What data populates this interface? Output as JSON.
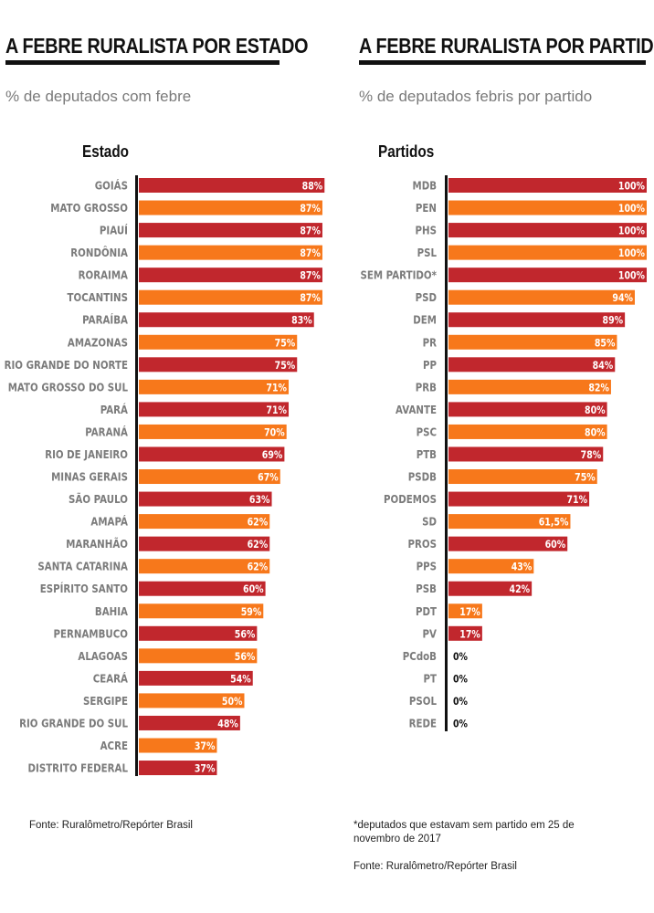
{
  "colors": {
    "red": "#c1272d",
    "orange": "#f7781b",
    "axis": "#111111",
    "label": "#7b7b7b"
  },
  "chart_data": [
    {
      "type": "bar",
      "orientation": "horizontal",
      "title": "A FEBRE RURALISTA POR ESTADO",
      "subtitle": "% de deputados com febre",
      "category_header": "Estado",
      "xlim": [
        0,
        100
      ],
      "value_suffix": "%",
      "categories": [
        "GOIÁS",
        "MATO GROSSO",
        "PIAUÍ",
        "RONDÔNIA",
        "RORAIMA",
        "TOCANTINS",
        "PARAÍBA",
        "AMAZONAS",
        "RIO GRANDE DO NORTE",
        "MATO GROSSO DO SUL",
        "PARÁ",
        "PARANÁ",
        "RIO DE JANEIRO",
        "MINAS GERAIS",
        "SÃO PAULO",
        "AMAPÁ",
        "MARANHÃO",
        "SANTA CATARINA",
        "ESPÍRITO SANTO",
        "BAHIA",
        "PERNAMBUCO",
        "ALAGOAS",
        "CEARÁ",
        "SERGIPE",
        "RIO GRANDE DO SUL",
        "ACRE",
        "DISTRITO FEDERAL"
      ],
      "values": [
        88,
        87,
        87,
        87,
        87,
        87,
        83,
        75,
        75,
        71,
        71,
        70,
        69,
        67,
        63,
        62,
        62,
        62,
        60,
        59,
        56,
        56,
        54,
        50,
        48,
        37,
        37
      ],
      "labels": [
        "88%",
        "87%",
        "87%",
        "87%",
        "87%",
        "87%",
        "83%",
        "75%",
        "75%",
        "71%",
        "71%",
        "70%",
        "69%",
        "67%",
        "63%",
        "62%",
        "62%",
        "62%",
        "60%",
        "59%",
        "56%",
        "56%",
        "54%",
        "50%",
        "48%",
        "37%",
        "37%"
      ],
      "bar_colors": "alternating red/orange starting with red",
      "source": "Fonte: Ruralômetro/Repórter Brasil"
    },
    {
      "type": "bar",
      "orientation": "horizontal",
      "title": "A FEBRE RURALISTA POR PARTIDO",
      "subtitle": "% de deputados febris por partido",
      "category_header": "Partidos",
      "xlim": [
        0,
        100
      ],
      "value_suffix": "%",
      "categories": [
        "MDB",
        "PEN",
        "PHS",
        "PSL",
        "SEM PARTIDO*",
        "PSD",
        "DEM",
        "PR",
        "PP",
        "PRB",
        "AVANTE",
        "PSC",
        "PTB",
        "PSDB",
        "PODEMOS",
        "SD",
        "PROS",
        "PPS",
        "PSB",
        "PDT",
        "PV",
        "PCdoB",
        "PT",
        "PSOL",
        "REDE"
      ],
      "values": [
        100,
        100,
        100,
        100,
        100,
        94,
        89,
        85,
        84,
        82,
        80,
        80,
        78,
        75,
        71,
        61.5,
        60,
        43,
        42,
        17,
        17,
        0,
        0,
        0,
        0
      ],
      "labels": [
        "100%",
        "100%",
        "100%",
        "100%",
        "100%",
        "94%",
        "89%",
        "85%",
        "84%",
        "82%",
        "80%",
        "80%",
        "78%",
        "75%",
        "71%",
        "61,5%",
        "60%",
        "43%",
        "42%",
        "17%",
        "17%",
        "0%",
        "0%",
        "0%",
        "0%"
      ],
      "bar_colors": "alternating red/orange starting with red",
      "footnote": "*deputados que estavam sem partido em 25 de novembro de 2017",
      "source": "Fonte: Ruralômetro/Repórter Brasil"
    }
  ]
}
